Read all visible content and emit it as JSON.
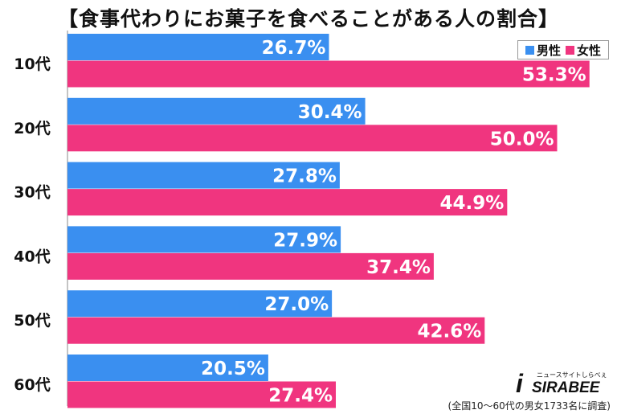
{
  "title": "【食事代わりにお菓子を食べることがある人の割合】",
  "legend": {
    "male_label": "男性",
    "female_label": "女性"
  },
  "colors": {
    "male": "#3a8ff0",
    "female": "#f0357f"
  },
  "footer_note": "(全国10～60代の男女1733名に調査)",
  "logo": {
    "tagline": "ニュースサイトしらべぇ",
    "name": "SIRABEE"
  },
  "chart_data": {
    "type": "bar",
    "orientation": "horizontal",
    "categories": [
      "10代",
      "20代",
      "30代",
      "40代",
      "50代",
      "60代"
    ],
    "series": [
      {
        "name": "男性",
        "values": [
          26.7,
          30.4,
          27.8,
          27.9,
          27.0,
          20.5
        ]
      },
      {
        "name": "女性",
        "values": [
          53.3,
          50.0,
          44.9,
          37.4,
          42.6,
          27.4
        ]
      }
    ],
    "value_labels": {
      "男性": [
        "26.7%",
        "30.4%",
        "27.8%",
        "27.9%",
        "27.0%",
        "20.5%"
      ],
      "女性": [
        "53.3%",
        "50.0%",
        "44.9%",
        "37.4%",
        "42.6%",
        "27.4%"
      ]
    },
    "title": "【食事代わりにお菓子を食べることがある人の割合】",
    "legend_position": "top-right",
    "grid": false
  }
}
